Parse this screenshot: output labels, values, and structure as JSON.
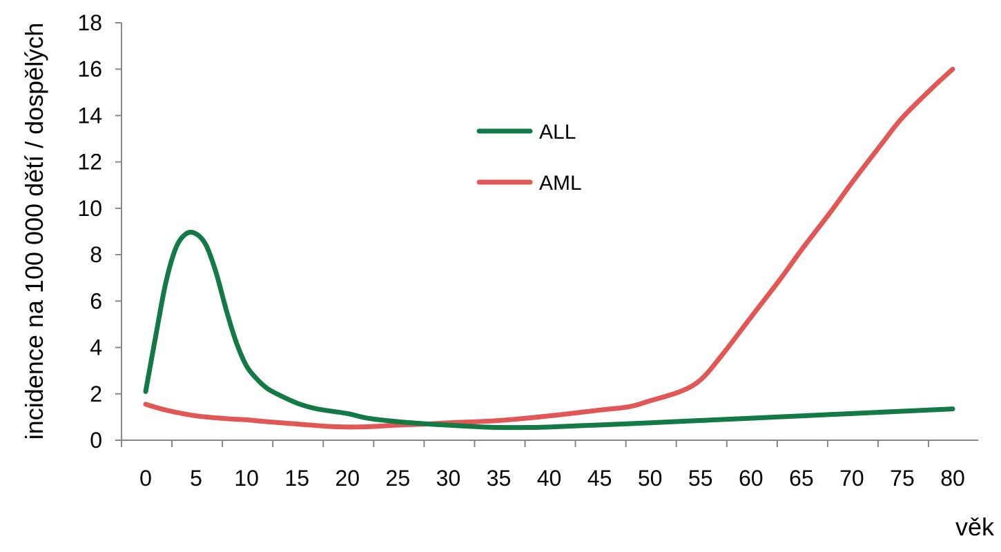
{
  "chart_data": {
    "type": "line",
    "xlabel": "věk",
    "ylabel": "incidence na 100 000 dětí / dospělých",
    "xlim": [
      0,
      80
    ],
    "ylim": [
      0,
      18
    ],
    "x_ticks": [
      "0",
      "5",
      "10",
      "15",
      "20",
      "25",
      "30",
      "35",
      "40",
      "45",
      "50",
      "55",
      "60",
      "65",
      "70",
      "75",
      "80"
    ],
    "y_ticks": [
      "0",
      "2",
      "4",
      "6",
      "8",
      "10",
      "12",
      "14",
      "16",
      "18"
    ],
    "grid": false,
    "legend_position": "inside-upper-center",
    "series": [
      {
        "name": "ALL",
        "color": "#137a46",
        "x": [
          0,
          1,
          2,
          3,
          4,
          5,
          6,
          7,
          8,
          9,
          10,
          11,
          12,
          13,
          15,
          17,
          20,
          22,
          25,
          28,
          30,
          33,
          35,
          38,
          40,
          45,
          50,
          55,
          60,
          65,
          70,
          75,
          80
        ],
        "y": [
          2.1,
          4.5,
          6.8,
          8.3,
          8.9,
          8.9,
          8.4,
          7.2,
          5.6,
          4.2,
          3.2,
          2.65,
          2.25,
          2.0,
          1.6,
          1.35,
          1.15,
          0.95,
          0.8,
          0.7,
          0.65,
          0.58,
          0.55,
          0.55,
          0.57,
          0.66,
          0.75,
          0.85,
          0.95,
          1.05,
          1.15,
          1.25,
          1.35
        ]
      },
      {
        "name": "AML",
        "color": "#e05756",
        "x": [
          0,
          2,
          5,
          8,
          10,
          12,
          15,
          18,
          20,
          22,
          25,
          28,
          30,
          35,
          40,
          45,
          48,
          50,
          53,
          55,
          57,
          60,
          63,
          65,
          68,
          70,
          73,
          75,
          78,
          80
        ],
        "y": [
          1.55,
          1.3,
          1.05,
          0.93,
          0.88,
          0.8,
          0.7,
          0.6,
          0.57,
          0.58,
          0.65,
          0.7,
          0.75,
          0.85,
          1.05,
          1.3,
          1.45,
          1.7,
          2.1,
          2.6,
          3.6,
          5.3,
          7.0,
          8.2,
          9.9,
          11.1,
          12.8,
          13.9,
          15.2,
          16.0
        ]
      }
    ]
  }
}
